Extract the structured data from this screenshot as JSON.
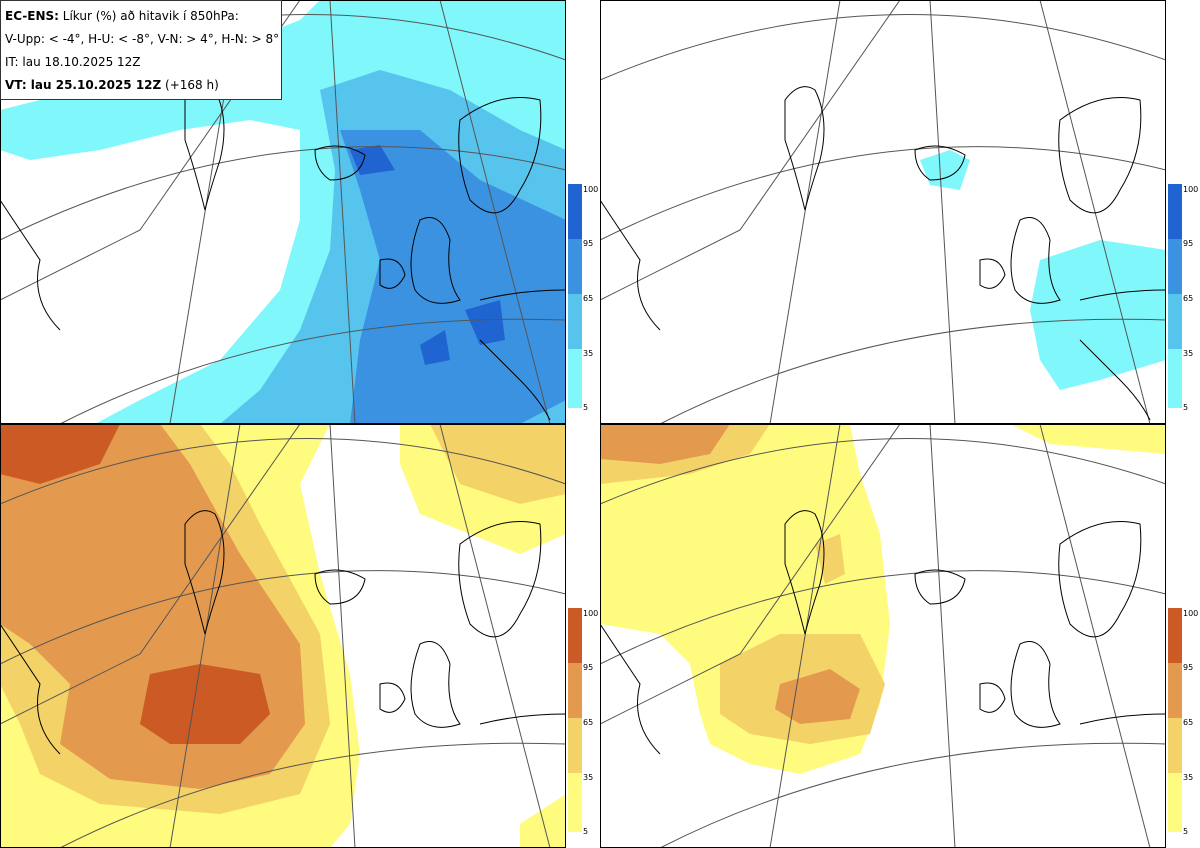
{
  "info": {
    "line1_bold": "EC-ENS:",
    "line1_rest": " Líkur (%) að hitavik í 850hPa:",
    "line2": "V-Upp: < -4°, H-U: < -8°, V-N: > 4°, H-N: > 8°",
    "line3": "IT: lau 18.10.2025 12Z",
    "line4_bold": "VT: lau 25.10.2025 12Z",
    "line4_rest": " (+168 h)"
  },
  "colorbar_ticks": [
    "100",
    "95",
    "65",
    "35",
    "5"
  ],
  "colors": {
    "cold": [
      "#7ff7fb",
      "#57c4ee",
      "#3a92e0",
      "#1f64d0"
    ],
    "warm": [
      "#fffb7f",
      "#f3d267",
      "#e39a4e",
      "#cb5a25"
    ]
  },
  "panels": [
    {
      "id": "upper-left-cold-4"
    },
    {
      "id": "upper-right-cold-8"
    },
    {
      "id": "lower-left-warm-4"
    },
    {
      "id": "lower-right-warm-8"
    }
  ]
}
